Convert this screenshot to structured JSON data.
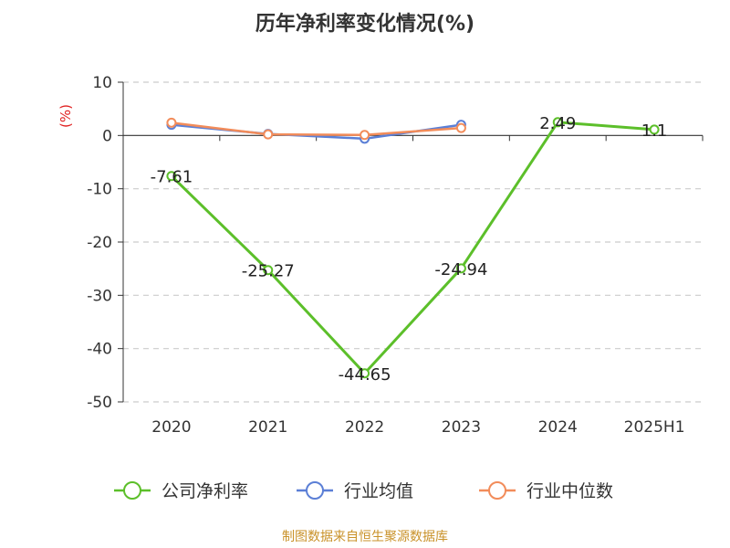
{
  "chart_data": {
    "type": "line",
    "title": "历年净利率变化情况(%)",
    "ylabel": "(%)",
    "categories": [
      "2020",
      "2021",
      "2022",
      "2023",
      "2024",
      "2025H1"
    ],
    "ylim": [
      -50,
      10
    ],
    "yticks": [
      10,
      0,
      -10,
      -20,
      -30,
      -40,
      -50
    ],
    "grid": true,
    "legend_position": "bottom",
    "series": [
      {
        "name": "公司净利率",
        "color": "#5cbf2a",
        "values": [
          -7.61,
          -25.27,
          -44.65,
          -24.94,
          2.49,
          1.1
        ],
        "labels": [
          "-7.61",
          "-25.27",
          "-44.65",
          "-24.94",
          "2.49",
          "1.1"
        ]
      },
      {
        "name": "行业均值",
        "color": "#5b7fd6",
        "values": [
          2.0,
          0.3,
          -0.6,
          2.0,
          null,
          null
        ]
      },
      {
        "name": "行业中位数",
        "color": "#f28c5a",
        "values": [
          2.4,
          0.2,
          0.1,
          1.4,
          null,
          null
        ]
      }
    ]
  },
  "footer": "制图数据来自恒生聚源数据库"
}
